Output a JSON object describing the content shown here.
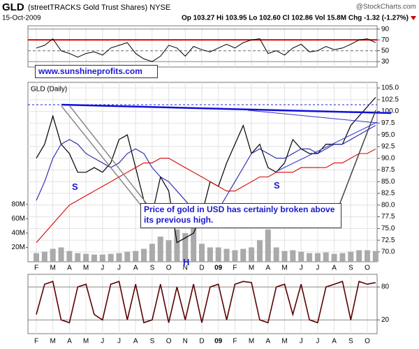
{
  "header": {
    "symbol": "GLD",
    "name": "(streetTRACKS Gold Trust Shares) NYSE",
    "date": "15-Oct-2009",
    "quote": "Op 103.27 Hi 103.95 Lo 102.60 Cl 102.86 Vol 15.8M Chg -1.32 (-1.27%)",
    "source": "@StockCharts.com"
  },
  "chart_data": [
    {
      "type": "line",
      "color": "#000000",
      "values": [
        55,
        60,
        72,
        50,
        45,
        38,
        45,
        48,
        42,
        55,
        60,
        65,
        45,
        35,
        30,
        40,
        60,
        55,
        40,
        58,
        52,
        48,
        55,
        62,
        55,
        65,
        70,
        72,
        45,
        50,
        42,
        55,
        62,
        48,
        50,
        58,
        52,
        55,
        62,
        70,
        72,
        65
      ],
      "ylim": [
        20,
        96
      ],
      "yticks": [
        90,
        70,
        50,
        30
      ],
      "grid": true
    },
    {
      "type": "line",
      "title": "GLD (Daily)",
      "categories": [
        "F",
        null,
        "M",
        null,
        "A",
        null,
        "M",
        null,
        "J",
        null,
        "J",
        null,
        "A",
        null,
        "S",
        null,
        "O",
        null,
        "N",
        null,
        "D",
        null,
        "09",
        null,
        "F",
        null,
        "M",
        null,
        "A",
        null,
        "M",
        null,
        "J",
        null,
        "J",
        null,
        "A",
        null,
        "S",
        null,
        "O",
        null
      ],
      "series": [
        {
          "color": "#000000",
          "values": [
            90,
            93,
            99,
            93,
            91,
            87,
            87,
            88,
            87,
            89,
            94,
            95,
            88,
            81,
            78,
            86,
            83,
            72,
            73,
            74,
            78,
            85,
            84,
            89,
            93,
            97,
            91,
            93,
            88,
            87,
            89,
            94,
            92,
            91,
            91,
            93,
            93,
            93,
            97,
            99,
            101,
            103
          ]
        },
        {
          "color": "#2222aa",
          "values": [
            81,
            85,
            90,
            93,
            94,
            93,
            91,
            90,
            89,
            88,
            89,
            91,
            92,
            91,
            88,
            86,
            85,
            83,
            81,
            79,
            77,
            77,
            79,
            82,
            85,
            88,
            91,
            92,
            91,
            90,
            90,
            91,
            92,
            92,
            91,
            92,
            93,
            93,
            94,
            95,
            96,
            97
          ]
        },
        {
          "color": "#dd0000",
          "values": [
            72,
            74,
            76,
            78,
            80,
            81,
            82,
            83,
            84,
            85,
            86,
            87,
            88,
            89,
            89,
            90,
            90,
            89,
            88,
            87,
            86,
            85,
            84,
            83,
            83,
            84,
            85,
            86,
            86,
            87,
            87,
            87,
            88,
            88,
            88,
            88,
            89,
            89,
            90,
            91,
            91,
            92
          ]
        }
      ],
      "volume": {
        "color": "#aaaaaa",
        "values": [
          12000000,
          14000000,
          18000000,
          20000000,
          15000000,
          12000000,
          11000000,
          10000000,
          10000000,
          11000000,
          12000000,
          14000000,
          15000000,
          18000000,
          25000000,
          35000000,
          30000000,
          45000000,
          40000000,
          55000000,
          25000000,
          20000000,
          20000000,
          18000000,
          16000000,
          18000000,
          20000000,
          30000000,
          45000000,
          20000000,
          15000000,
          16000000,
          14000000,
          12000000,
          12000000,
          13000000,
          11000000,
          12000000,
          14000000,
          16000000,
          16000000,
          15000000
        ],
        "ylim": [
          0,
          250000000
        ],
        "yticks": [
          {
            "value": 80000000,
            "label": "80M"
          },
          {
            "value": 60000000,
            "label": "60M"
          },
          {
            "value": 40000000,
            "label": "40M"
          },
          {
            "value": 20000000,
            "label": "20M"
          }
        ]
      },
      "ylim": [
        67.9,
        106.2
      ],
      "yticks": [
        {
          "value": 105,
          "label": "105.0"
        },
        102.5,
        {
          "value": 100,
          "label": "100.0"
        },
        97.5,
        {
          "value": 95,
          "label": "95.0"
        },
        92.5,
        {
          "value": 90,
          "label": "90.0"
        },
        87.5,
        {
          "value": 85,
          "label": "85.0"
        },
        82.5,
        {
          "value": 80,
          "label": "80.0"
        },
        77.5,
        {
          "value": 75,
          "label": "75.0"
        },
        72.5,
        {
          "value": 70,
          "label": "70.0"
        }
      ],
      "grid": true,
      "annotations": [
        "www.sunshineprofits.com",
        "Price of gold in USD has certainly broken above its previous high.",
        "S",
        "S",
        "H"
      ]
    },
    {
      "type": "line",
      "color": "#5a0000",
      "categories": [
        "F",
        null,
        "M",
        null,
        "A",
        null,
        "M",
        null,
        "J",
        null,
        "J",
        null,
        "A",
        null,
        "S",
        null,
        "O",
        null,
        "N",
        null,
        "D",
        null,
        "09",
        null,
        "F",
        null,
        "M",
        null,
        "A",
        null,
        "M",
        null,
        "J",
        null,
        "J",
        null,
        "A",
        null,
        "S",
        null,
        "O",
        null
      ],
      "values": [
        30,
        85,
        90,
        20,
        15,
        80,
        85,
        30,
        20,
        85,
        90,
        20,
        85,
        15,
        20,
        85,
        15,
        80,
        20,
        85,
        15,
        80,
        85,
        20,
        85,
        90,
        88,
        20,
        15,
        80,
        85,
        30,
        85,
        20,
        15,
        80,
        85,
        90,
        20,
        90,
        85,
        88
      ],
      "ylim": [
        -5,
        103
      ],
      "yticks": [
        80,
        20
      ],
      "grid": true
    }
  ]
}
